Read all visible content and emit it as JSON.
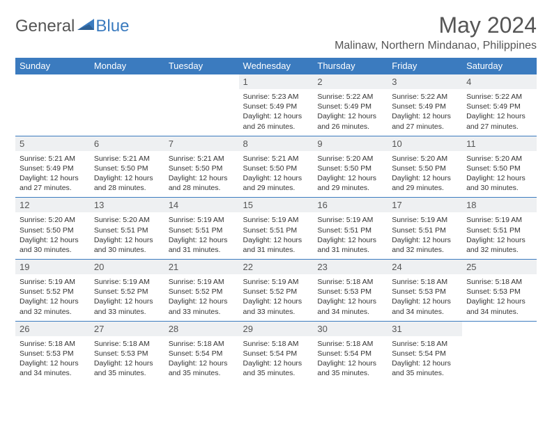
{
  "logo": {
    "text1": "General",
    "text2": "Blue"
  },
  "title": "May 2024",
  "location": "Malinaw, Northern Mindanao, Philippines",
  "colors": {
    "header_bg": "#3b7bbf",
    "header_text": "#ffffff",
    "daynum_bg": "#eef0f2",
    "border": "#3b7bbf",
    "body_text": "#333333",
    "title_text": "#555555"
  },
  "weekdays": [
    "Sunday",
    "Monday",
    "Tuesday",
    "Wednesday",
    "Thursday",
    "Friday",
    "Saturday"
  ],
  "weeks": [
    [
      null,
      null,
      null,
      {
        "n": "1",
        "sr": "5:23 AM",
        "ss": "5:49 PM",
        "dl": "12 hours and 26 minutes."
      },
      {
        "n": "2",
        "sr": "5:22 AM",
        "ss": "5:49 PM",
        "dl": "12 hours and 26 minutes."
      },
      {
        "n": "3",
        "sr": "5:22 AM",
        "ss": "5:49 PM",
        "dl": "12 hours and 27 minutes."
      },
      {
        "n": "4",
        "sr": "5:22 AM",
        "ss": "5:49 PM",
        "dl": "12 hours and 27 minutes."
      }
    ],
    [
      {
        "n": "5",
        "sr": "5:21 AM",
        "ss": "5:49 PM",
        "dl": "12 hours and 27 minutes."
      },
      {
        "n": "6",
        "sr": "5:21 AM",
        "ss": "5:50 PM",
        "dl": "12 hours and 28 minutes."
      },
      {
        "n": "7",
        "sr": "5:21 AM",
        "ss": "5:50 PM",
        "dl": "12 hours and 28 minutes."
      },
      {
        "n": "8",
        "sr": "5:21 AM",
        "ss": "5:50 PM",
        "dl": "12 hours and 29 minutes."
      },
      {
        "n": "9",
        "sr": "5:20 AM",
        "ss": "5:50 PM",
        "dl": "12 hours and 29 minutes."
      },
      {
        "n": "10",
        "sr": "5:20 AM",
        "ss": "5:50 PM",
        "dl": "12 hours and 29 minutes."
      },
      {
        "n": "11",
        "sr": "5:20 AM",
        "ss": "5:50 PM",
        "dl": "12 hours and 30 minutes."
      }
    ],
    [
      {
        "n": "12",
        "sr": "5:20 AM",
        "ss": "5:50 PM",
        "dl": "12 hours and 30 minutes."
      },
      {
        "n": "13",
        "sr": "5:20 AM",
        "ss": "5:51 PM",
        "dl": "12 hours and 30 minutes."
      },
      {
        "n": "14",
        "sr": "5:19 AM",
        "ss": "5:51 PM",
        "dl": "12 hours and 31 minutes."
      },
      {
        "n": "15",
        "sr": "5:19 AM",
        "ss": "5:51 PM",
        "dl": "12 hours and 31 minutes."
      },
      {
        "n": "16",
        "sr": "5:19 AM",
        "ss": "5:51 PM",
        "dl": "12 hours and 31 minutes."
      },
      {
        "n": "17",
        "sr": "5:19 AM",
        "ss": "5:51 PM",
        "dl": "12 hours and 32 minutes."
      },
      {
        "n": "18",
        "sr": "5:19 AM",
        "ss": "5:51 PM",
        "dl": "12 hours and 32 minutes."
      }
    ],
    [
      {
        "n": "19",
        "sr": "5:19 AM",
        "ss": "5:52 PM",
        "dl": "12 hours and 32 minutes."
      },
      {
        "n": "20",
        "sr": "5:19 AM",
        "ss": "5:52 PM",
        "dl": "12 hours and 33 minutes."
      },
      {
        "n": "21",
        "sr": "5:19 AM",
        "ss": "5:52 PM",
        "dl": "12 hours and 33 minutes."
      },
      {
        "n": "22",
        "sr": "5:19 AM",
        "ss": "5:52 PM",
        "dl": "12 hours and 33 minutes."
      },
      {
        "n": "23",
        "sr": "5:18 AM",
        "ss": "5:53 PM",
        "dl": "12 hours and 34 minutes."
      },
      {
        "n": "24",
        "sr": "5:18 AM",
        "ss": "5:53 PM",
        "dl": "12 hours and 34 minutes."
      },
      {
        "n": "25",
        "sr": "5:18 AM",
        "ss": "5:53 PM",
        "dl": "12 hours and 34 minutes."
      }
    ],
    [
      {
        "n": "26",
        "sr": "5:18 AM",
        "ss": "5:53 PM",
        "dl": "12 hours and 34 minutes."
      },
      {
        "n": "27",
        "sr": "5:18 AM",
        "ss": "5:53 PM",
        "dl": "12 hours and 35 minutes."
      },
      {
        "n": "28",
        "sr": "5:18 AM",
        "ss": "5:54 PM",
        "dl": "12 hours and 35 minutes."
      },
      {
        "n": "29",
        "sr": "5:18 AM",
        "ss": "5:54 PM",
        "dl": "12 hours and 35 minutes."
      },
      {
        "n": "30",
        "sr": "5:18 AM",
        "ss": "5:54 PM",
        "dl": "12 hours and 35 minutes."
      },
      {
        "n": "31",
        "sr": "5:18 AM",
        "ss": "5:54 PM",
        "dl": "12 hours and 35 minutes."
      },
      null
    ]
  ],
  "labels": {
    "sunrise": "Sunrise:",
    "sunset": "Sunset:",
    "daylight": "Daylight:"
  }
}
